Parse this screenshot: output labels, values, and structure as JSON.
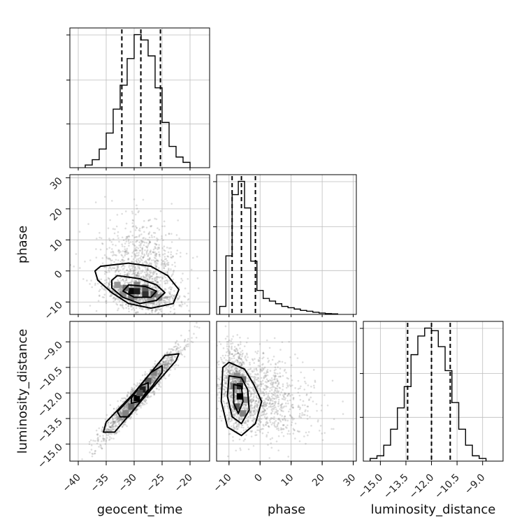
{
  "chart_data": {
    "type": "corner",
    "parameters": [
      "geocent_time",
      "phase",
      "luminosity_distance"
    ],
    "ranges": {
      "geocent_time": [
        -41.5,
        -16.5
      ],
      "phase": [
        -14.0,
        31.0
      ],
      "luminosity_distance": [
        -16.0,
        -7.8
      ]
    },
    "ticks": {
      "geocent_time": [
        -40,
        -35,
        -30,
        -25,
        -20
      ],
      "phase": [
        -10,
        0,
        10,
        20,
        30
      ],
      "luminosity_distance": [
        -15.0,
        -13.5,
        -12.0,
        -10.5,
        -9.0
      ]
    },
    "tick_labels": {
      "geocent_time": [
        "−40",
        "−35",
        "−30",
        "−25",
        "−20"
      ],
      "phase": [
        "−10",
        "0",
        "10",
        "20",
        "30"
      ],
      "luminosity_distance": [
        "−15.0",
        "−13.5",
        "−12.0",
        "−10.5",
        "−9.0"
      ]
    },
    "quantiles": {
      "geocent_time": [
        -32.2,
        -28.8,
        -25.3
      ],
      "phase": [
        -9.0,
        -6.0,
        -1.5
      ],
      "luminosity_distance": [
        -13.4,
        -12.0,
        -10.9
      ]
    },
    "histograms": {
      "geocent_time": {
        "bin_edges": [
          -38.75,
          -37.5,
          -36.25,
          -35,
          -33.75,
          -32.5,
          -31.25,
          -30,
          -28.75,
          -27.5,
          -26.25,
          -25,
          -23.75,
          -22.5,
          -21.25,
          -20
        ],
        "counts": [
          1,
          3,
          7,
          13,
          22,
          31,
          41,
          50,
          48,
          42,
          30,
          17,
          8,
          4,
          2
        ]
      },
      "phase": {
        "bin_edges": [
          -13,
          -11,
          -9,
          -7,
          -5,
          -3,
          -1,
          1,
          3,
          5,
          7,
          9,
          11,
          13,
          15,
          17,
          19,
          21,
          23,
          25
        ],
        "counts": [
          3,
          22,
          45,
          50,
          40,
          20,
          9,
          6,
          5,
          4,
          3,
          2.5,
          2,
          1.5,
          1.2,
          0.8,
          0.5,
          0.3,
          0.2
        ]
      },
      "luminosity_distance": {
        "bin_edges": [
          -15.6,
          -15.2,
          -14.8,
          -14.4,
          -14.0,
          -13.6,
          -13.2,
          -12.8,
          -12.4,
          -12.0,
          -11.6,
          -11.2,
          -10.8,
          -10.4,
          -10.0,
          -9.6,
          -9.2,
          -8.8
        ],
        "counts": [
          1,
          2,
          6,
          12,
          20,
          28,
          40,
          47,
          50,
          49,
          43,
          34,
          22,
          12,
          6,
          2,
          1
        ]
      }
    },
    "pairs": [
      {
        "x": "geocent_time",
        "y": "phase",
        "mean": [
          -28.8,
          -5.5
        ],
        "sd": [
          3.4,
          3.8
        ],
        "rho": -0.3,
        "skew_y": 1.9,
        "contours": [
          [
            [
              -36.0,
              1.5
            ],
            [
              -31.0,
              2.5
            ],
            [
              -27.0,
              1.5
            ],
            [
              -24.0,
              -1.5
            ],
            [
              -22.0,
              -6.0
            ],
            [
              -23.0,
              -10.5
            ],
            [
              -27.0,
              -12.0
            ],
            [
              -31.0,
              -10.5
            ],
            [
              -34.0,
              -7.0
            ],
            [
              -36.5,
              -3.0
            ],
            [
              -37.0,
              0.0
            ]
          ],
          [
            [
              -33.0,
              -1.5
            ],
            [
              -29.0,
              -2.5
            ],
            [
              -26.0,
              -4.5
            ],
            [
              -24.5,
              -7.0
            ],
            [
              -26.0,
              -9.5
            ],
            [
              -29.0,
              -10.5
            ],
            [
              -32.0,
              -8.5
            ],
            [
              -34.0,
              -5.5
            ],
            [
              -34.0,
              -3.0
            ]
          ],
          [
            [
              -31.0,
              -4.5
            ],
            [
              -28.0,
              -5.0
            ],
            [
              -26.0,
              -6.5
            ],
            [
              -27.0,
              -8.5
            ],
            [
              -30.0,
              -8.5
            ],
            [
              -32.0,
              -6.5
            ]
          ]
        ],
        "dense_cells": [
          [
            -30.5,
            -6.5,
            0.95
          ],
          [
            -29.5,
            -6.5,
            0.85
          ],
          [
            -28.0,
            -7.5,
            0.75
          ],
          [
            -28.0,
            -5.5,
            0.55
          ],
          [
            -31.5,
            -5.5,
            0.45
          ],
          [
            -26.5,
            -7.5,
            0.5
          ],
          [
            -30.5,
            -8.5,
            0.4
          ],
          [
            -29.5,
            -4.5,
            0.35
          ],
          [
            -33.0,
            -4.5,
            0.25
          ],
          [
            -25.5,
            -8.5,
            0.3
          ],
          [
            -27.0,
            -9.5,
            0.2
          ],
          [
            -32.0,
            -7.5,
            0.3
          ]
        ]
      },
      {
        "x": "geocent_time",
        "y": "luminosity_distance",
        "mean": [
          -28.8,
          -12.0
        ],
        "sd": [
          3.4,
          1.3
        ],
        "rho": 0.96,
        "skew_y": 0,
        "contours": [
          [
            [
              -35.5,
              -14.3
            ],
            [
              -33.5,
              -14.3
            ],
            [
              -27.0,
              -11.8
            ],
            [
              -22.5,
              -10.1
            ],
            [
              -22.0,
              -9.7
            ],
            [
              -24.5,
              -9.8
            ],
            [
              -30.0,
              -12.0
            ],
            [
              -35.0,
              -13.7
            ]
          ],
          [
            [
              -32.5,
              -13.4
            ],
            [
              -31.0,
              -13.4
            ],
            [
              -27.0,
              -11.7
            ],
            [
              -25.0,
              -10.8
            ],
            [
              -25.0,
              -10.4
            ],
            [
              -27.0,
              -10.8
            ],
            [
              -31.0,
              -12.4
            ],
            [
              -33.0,
              -13.1
            ]
          ],
          [
            [
              -30.5,
              -12.6
            ],
            [
              -29.0,
              -12.5
            ],
            [
              -27.5,
              -11.8
            ],
            [
              -27.5,
              -11.4
            ],
            [
              -29.0,
              -11.6
            ],
            [
              -30.5,
              -12.3
            ]
          ]
        ],
        "dense_cells": [
          [
            -29.5,
            -12.3,
            1.0
          ],
          [
            -28.5,
            -11.8,
            0.85
          ],
          [
            -30.5,
            -12.8,
            0.5
          ],
          [
            -27.5,
            -11.3,
            0.55
          ],
          [
            -31.5,
            -13.2,
            0.35
          ],
          [
            -26.5,
            -10.8,
            0.35
          ],
          [
            -29.0,
            -12.0,
            0.6
          ]
        ]
      },
      {
        "x": "phase",
        "y": "luminosity_distance",
        "mean": [
          -5.5,
          -12.0
        ],
        "sd": [
          3.8,
          1.3
        ],
        "rho": -0.3,
        "skew_x": 1.9,
        "contours": [
          [
            [
              -12.0,
              -10.5
            ],
            [
              -10.0,
              -10.2
            ],
            [
              -5.0,
              -10.6
            ],
            [
              -2.0,
              -11.5
            ],
            [
              0.5,
              -12.5
            ],
            [
              -1.5,
              -13.8
            ],
            [
              -6.0,
              -14.5
            ],
            [
              -10.5,
              -14.0
            ],
            [
              -12.5,
              -12.5
            ]
          ],
          [
            [
              -10.0,
              -11.0
            ],
            [
              -6.0,
              -11.1
            ],
            [
              -4.0,
              -11.8
            ],
            [
              -3.5,
              -13.0
            ],
            [
              -6.0,
              -13.8
            ],
            [
              -9.0,
              -13.4
            ],
            [
              -10.5,
              -12.2
            ]
          ],
          [
            [
              -8.5,
              -11.5
            ],
            [
              -6.0,
              -11.6
            ],
            [
              -5.5,
              -12.5
            ],
            [
              -7.0,
              -13.2
            ],
            [
              -8.5,
              -12.6
            ]
          ]
        ],
        "dense_cells": [
          [
            -6.5,
            -12.2,
            1.0
          ],
          [
            -6.5,
            -11.6,
            0.8
          ],
          [
            -7.5,
            -12.8,
            0.55
          ],
          [
            -5.5,
            -11.2,
            0.45
          ],
          [
            -8.5,
            -11.6,
            0.4
          ],
          [
            -5.5,
            -13.2,
            0.35
          ],
          [
            -7.5,
            -11.0,
            0.3
          ],
          [
            -4.5,
            -12.4,
            0.3
          ]
        ]
      }
    ]
  }
}
